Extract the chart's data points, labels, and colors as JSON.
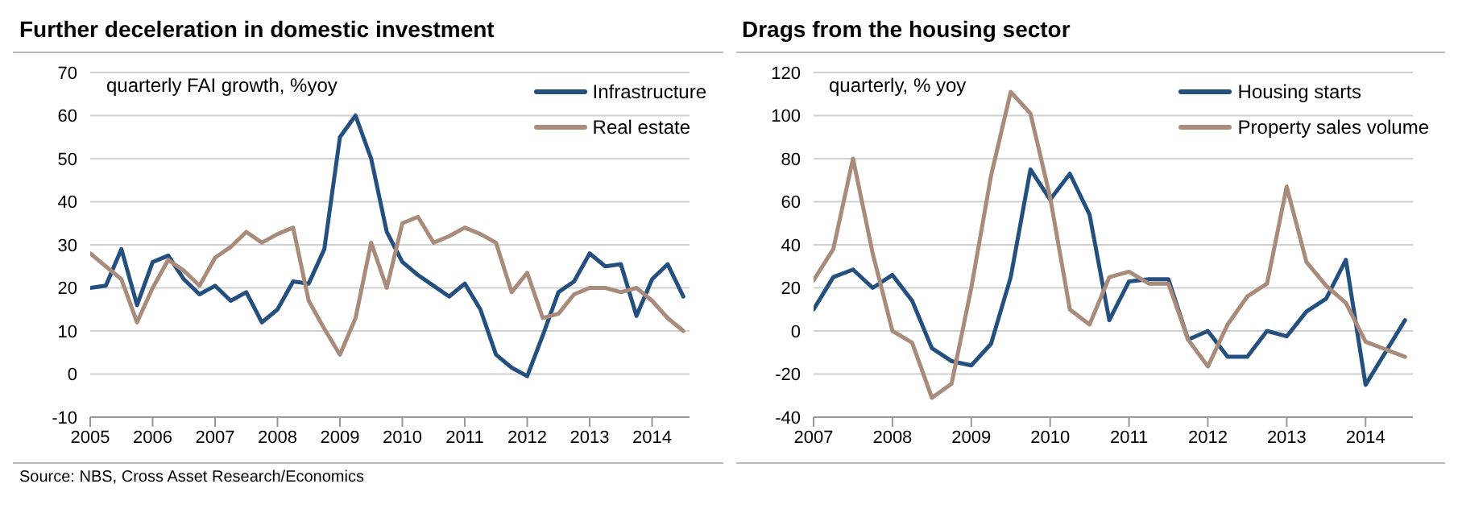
{
  "chart_data": [
    {
      "type": "line",
      "title": "Further deceleration in domestic investment",
      "annotations": [
        "quarterly FAI growth, %yoy",
        "Source: NBS, Cross Asset Research/Economics"
      ],
      "x": [
        2005,
        2005.25,
        2005.5,
        2005.75,
        2006,
        2006.25,
        2006.5,
        2006.75,
        2007,
        2007.25,
        2007.5,
        2007.75,
        2008,
        2008.25,
        2008.5,
        2008.75,
        2009,
        2009.25,
        2009.5,
        2009.75,
        2010,
        2010.25,
        2010.5,
        2010.75,
        2011,
        2011.25,
        2011.5,
        2011.75,
        2012,
        2012.25,
        2012.5,
        2012.75,
        2013,
        2013.25,
        2013.5,
        2013.75,
        2014,
        2014.25,
        2014.5
      ],
      "series": [
        {
          "name": "Infrastructure",
          "color": "#23507f",
          "values": [
            20,
            20.5,
            29,
            16,
            26,
            27.5,
            22,
            18.5,
            20.5,
            17,
            19,
            12,
            15,
            21.5,
            21,
            29,
            55,
            60,
            50,
            33,
            26,
            23,
            20.5,
            18,
            21,
            15,
            4.5,
            1.5,
            -0.5,
            9,
            19,
            21.5,
            28,
            25,
            25.5,
            13.5,
            22,
            25.5,
            18
          ]
        },
        {
          "name": "Real estate",
          "color": "#a88b7a",
          "values": [
            28,
            25,
            22,
            12,
            20,
            26.5,
            24,
            20.5,
            27,
            29.5,
            33,
            30.5,
            32.5,
            34,
            17,
            10.5,
            4.5,
            13,
            30.5,
            20,
            35,
            36.5,
            30.5,
            32,
            34,
            32.5,
            30.5,
            19,
            23.5,
            13,
            14,
            18.5,
            20,
            20,
            19,
            20,
            17,
            13,
            10
          ]
        }
      ],
      "xlim": [
        2005,
        2014.6
      ],
      "xticks": [
        2005,
        2006,
        2007,
        2008,
        2009,
        2010,
        2011,
        2012,
        2013,
        2014
      ],
      "ylim": [
        -10,
        70
      ],
      "yticks": [
        -10,
        0,
        10,
        20,
        30,
        40,
        50,
        60,
        70
      ],
      "grid": "y",
      "legend": "top right",
      "marker": "none",
      "line_style": "solid"
    },
    {
      "type": "line",
      "title": "Drags from the housing sector",
      "annotations": [
        "quarterly, % yoy"
      ],
      "x": [
        2007,
        2007.25,
        2007.5,
        2007.75,
        2008,
        2008.25,
        2008.5,
        2008.75,
        2009,
        2009.25,
        2009.5,
        2009.75,
        2010,
        2010.25,
        2010.5,
        2010.75,
        2011,
        2011.25,
        2011.5,
        2011.75,
        2012,
        2012.25,
        2012.5,
        2012.75,
        2013,
        2013.25,
        2013.5,
        2013.75,
        2014,
        2014.25,
        2014.5
      ],
      "series": [
        {
          "name": "Housing starts",
          "color": "#23507f",
          "values": [
            10,
            25,
            28.5,
            20,
            26,
            14,
            -8,
            -14,
            -16,
            -6,
            25,
            75,
            61,
            73,
            54,
            5,
            23,
            24,
            24,
            -4,
            0,
            -12,
            -12,
            0,
            -2.5,
            9,
            15,
            33,
            -25,
            -10,
            5
          ]
        },
        {
          "name": "Property sales volume",
          "color": "#a88b7a",
          "values": [
            23.5,
            38,
            80,
            36,
            0,
            -5.5,
            -31,
            -24.5,
            20,
            72,
            111,
            101,
            62,
            10,
            3,
            25,
            27.5,
            22,
            22,
            -4,
            -16.5,
            3,
            16,
            22,
            67,
            32,
            21,
            13,
            -5,
            -8.5,
            -12
          ]
        }
      ],
      "xlim": [
        2007,
        2014.6
      ],
      "xticks": [
        2007,
        2008,
        2009,
        2010,
        2011,
        2012,
        2013,
        2014
      ],
      "ylim": [
        -40,
        120
      ],
      "yticks": [
        -40,
        -20,
        0,
        20,
        40,
        60,
        80,
        100,
        120
      ],
      "grid": "y",
      "legend": "top right",
      "marker": "none",
      "line_style": "solid"
    }
  ]
}
